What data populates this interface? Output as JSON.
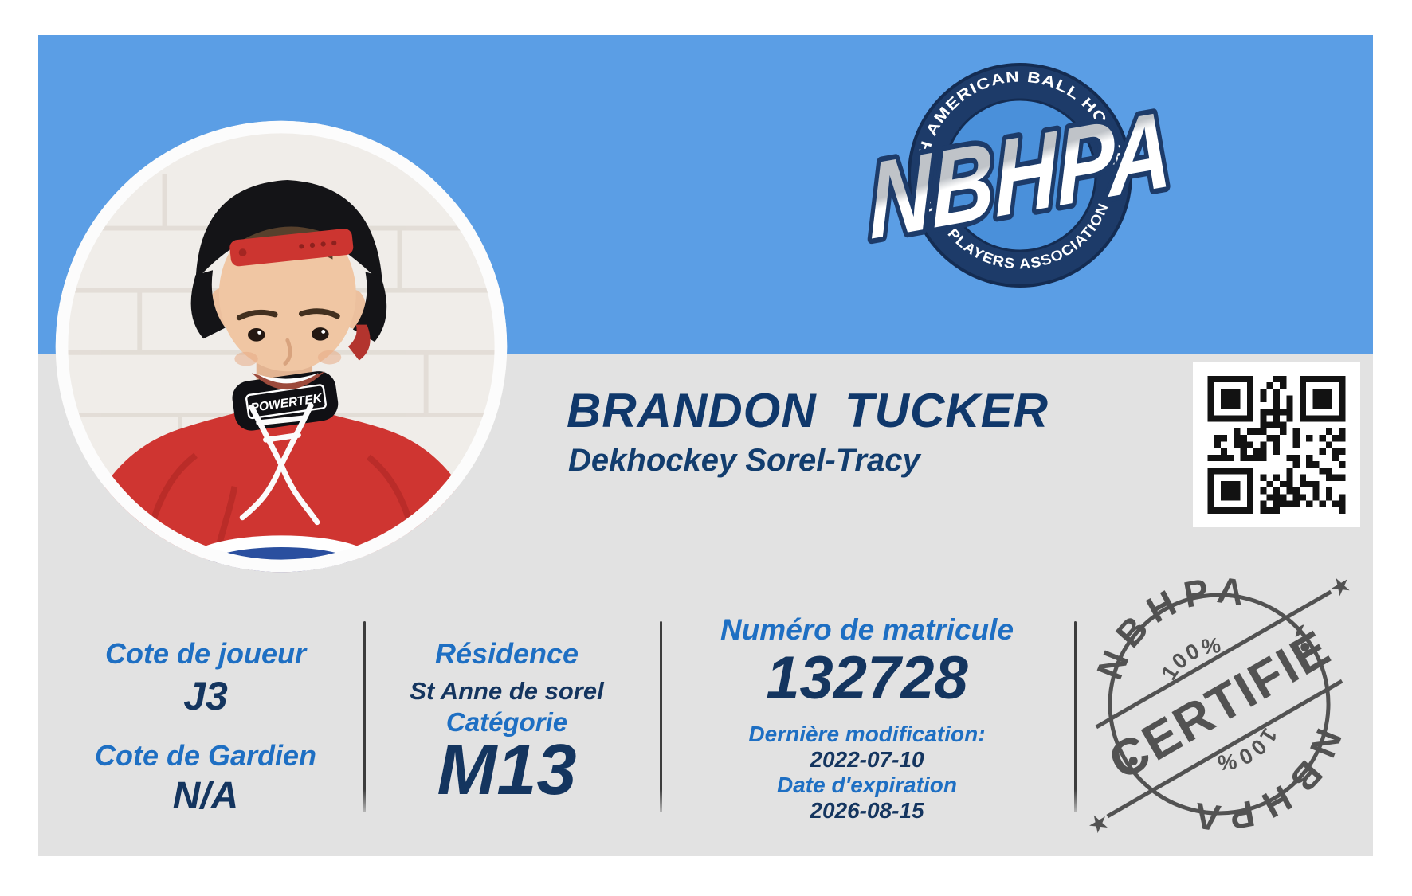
{
  "card": {
    "player_name": "BRANDON  TUCKER",
    "team_name": "Dekhockey Sorel-Tracy",
    "logo": {
      "acronym": "NBHPA",
      "arc_top": "NORTH AMERICAN BALL HOCKEY",
      "arc_bottom": "PLAYERS ASSOCIATION"
    },
    "photo": {
      "neck_guard_text": "POWERTEK"
    },
    "fields": {
      "player_rating": {
        "label": "Cote de joueur",
        "value": "J3"
      },
      "goalie_rating": {
        "label": "Cote de Gardien",
        "value": "N/A"
      },
      "residence": {
        "label": "Résidence",
        "value": "St Anne de sorel"
      },
      "category": {
        "label": "Catégorie",
        "value": "M13"
      },
      "matricule": {
        "label": "Numéro de matricule",
        "value": "132728"
      },
      "last_modified": {
        "label": "Dernière modification:",
        "value": "2022-07-10"
      },
      "expiration": {
        "label": "Date d'expiration",
        "value": "2026-08-15"
      }
    },
    "stamp": {
      "word": "CERTIFIÉ",
      "org_top": "NBHPA",
      "org_bottom": "NBHPA",
      "percent_top": "100%",
      "percent_bottom": "100%",
      "star": "★"
    },
    "colors": {
      "band_blue": "#5B9EE5",
      "card_grey": "#E2E2E2",
      "label_blue": "#1E6FC3",
      "value_navy": "#14355F",
      "name_navy": "#10386B",
      "logo_navy": "#1D3B69",
      "logo_inner_blue": "#4A90DA",
      "stamp_grey": "#3F3F3F",
      "jersey_red": "#CF3531"
    }
  }
}
